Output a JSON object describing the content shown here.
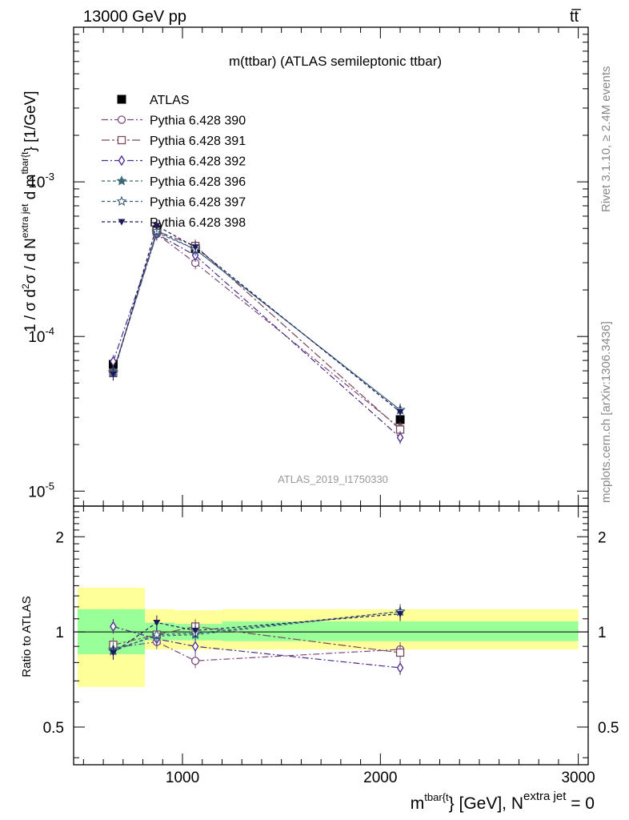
{
  "header": {
    "energy": "13000 GeV pp",
    "process": "tt̅"
  },
  "side_labels": {
    "rivet": "Rivet 3.1.10, ≥ 2.4M events",
    "mcplots": "mcplots.cern.ch [arXiv:1306.3436]"
  },
  "chart_data": [
    {
      "type": "line",
      "title": "m(ttbar) (ATLAS semileptonic ttbar)",
      "watermark": "ATLAS_2019_I1750330",
      "ylabel": "1 / σ d²σ / d N^extra jet d m^tbar{t} [1/GeV]",
      "ylabel_parts": {
        "main": "1 / σ d",
        "sq": "2",
        "sigma": "σ /  d N",
        "sup1": "extra jet",
        "mid": " d m",
        "sup2": "tbar{t",
        "tail": "} [1/GeV]"
      },
      "yscale": "log",
      "ylim": [
        8e-06,
        0.01
      ],
      "xlim": [
        450,
        3050
      ],
      "yticks": [
        {
          "label_base": "10",
          "label_exp": "-3",
          "value": 0.001
        },
        {
          "label_base": "10",
          "label_exp": "-4",
          "value": 0.0001
        },
        {
          "label_base": "10",
          "label_exp": "-5",
          "value": 1e-05
        }
      ],
      "legend_position": "upper-left",
      "x": [
        650,
        870,
        1065,
        2100
      ],
      "series": [
        {
          "name": "ATLAS",
          "marker": "filled-square",
          "color": "#000000",
          "style": "data",
          "values": [
            6.6e-05,
            0.00049,
            0.00037,
            2.9e-05
          ]
        },
        {
          "name": "Pythia 6.428 390",
          "marker": "open-circle",
          "color": "#7a4a7a",
          "style": "dashdot",
          "values": [
            5.9e-05,
            0.00046,
            0.000299,
            2.55e-05
          ]
        },
        {
          "name": "Pythia 6.428 391",
          "marker": "open-square",
          "color": "#7a4a5a",
          "style": "dashdot2",
          "values": [
            5.8e-05,
            0.00048,
            0.000385,
            2.5e-05
          ]
        },
        {
          "name": "Pythia 6.428 392",
          "marker": "open-diamond",
          "color": "#4a2a8a",
          "style": "dashdot",
          "values": [
            6.9e-05,
            0.00046,
            0.000334,
            2.22e-05
          ]
        },
        {
          "name": "Pythia 6.428 396",
          "marker": "filled-star",
          "color": "#3a6a7a",
          "style": "dashed",
          "values": [
            5.9e-05,
            0.00047,
            0.000366,
            3.35e-05
          ]
        },
        {
          "name": "Pythia 6.428 397",
          "marker": "open-star",
          "color": "#3a5a7a",
          "style": "dashed",
          "values": [
            5.8e-05,
            0.00048,
            0.000366,
            3.35e-05
          ]
        },
        {
          "name": "Pythia 6.428 398",
          "marker": "filled-triangle-down",
          "color": "#1a1a5a",
          "style": "dashed",
          "values": [
            5.7e-05,
            0.00052,
            0.000378,
            3.25e-05
          ]
        }
      ]
    },
    {
      "type": "line",
      "ylabel": "Ratio to ATLAS",
      "xlabel_parts": {
        "main": "m",
        "sup1": "tbar{t",
        "mid": "} [GeV], N",
        "sup2": "extra jet",
        "tail": " = 0"
      },
      "ylim": [
        0.38,
        2.5
      ],
      "yscale": "log",
      "xlim": [
        450,
        3050
      ],
      "xticks": [
        {
          "label": "1000",
          "value": 1000
        },
        {
          "label": "2000",
          "value": 2000
        },
        {
          "label": "3000",
          "value": 3000
        }
      ],
      "yticks": [
        {
          "label": "2",
          "value": 2
        },
        {
          "label": "1",
          "value": 1
        },
        {
          "label": "0.5",
          "value": 0.5
        }
      ],
      "bands": [
        {
          "x0": 470,
          "x1": 810,
          "green": [
            0.85,
            1.18
          ],
          "yellow": [
            0.67,
            1.38
          ]
        },
        {
          "x0": 810,
          "x1": 960,
          "green": [
            0.94,
            1.07
          ],
          "yellow": [
            0.88,
            1.18
          ]
        },
        {
          "x0": 960,
          "x1": 1200,
          "green": [
            0.94,
            1.06
          ],
          "yellow": [
            0.88,
            1.17
          ]
        },
        {
          "x0": 1200,
          "x1": 3000,
          "green": [
            0.935,
            1.08
          ],
          "yellow": [
            0.88,
            1.18
          ]
        }
      ],
      "bands_colors": {
        "green": "#99ff99",
        "yellow": "#ffff99"
      },
      "series_ratio": [
        {
          "name": "Pythia 6.428 390",
          "values": [
            0.89,
            0.93,
            0.81,
            0.88
          ]
        },
        {
          "name": "Pythia 6.428 391",
          "values": [
            0.91,
            0.98,
            1.04,
            0.86
          ]
        },
        {
          "name": "Pythia 6.428 392",
          "values": [
            1.04,
            0.95,
            0.9,
            0.77
          ]
        },
        {
          "name": "Pythia 6.428 396",
          "values": [
            0.88,
            0.97,
            0.98,
            1.16
          ]
        },
        {
          "name": "Pythia 6.428 397",
          "values": [
            0.87,
            0.98,
            0.99,
            1.16
          ]
        },
        {
          "name": "Pythia 6.428 398",
          "values": [
            0.86,
            1.07,
            1.01,
            1.14
          ]
        }
      ]
    }
  ]
}
